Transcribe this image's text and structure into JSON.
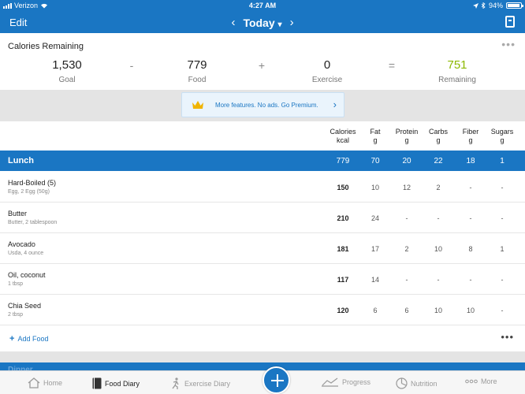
{
  "status": {
    "carrier": "Verizon",
    "time": "4:27 AM",
    "battery": "94%"
  },
  "nav": {
    "edit": "Edit",
    "title": "Today",
    "prev_arrow": "‹",
    "next_arrow": "›",
    "chevron": "⌄"
  },
  "calories": {
    "title": "Calories Remaining",
    "more": "•••",
    "goal": {
      "value": "1,530",
      "label": "Goal"
    },
    "food": {
      "value": "779",
      "label": "Food"
    },
    "exercise": {
      "value": "0",
      "label": "Exercise"
    },
    "remaining": {
      "value": "751",
      "label": "Remaining"
    },
    "op_minus": "-",
    "op_plus": "+",
    "op_equals": "=",
    "remaining_color": "#8cb800"
  },
  "promo": {
    "text": "More features. No ads. Go Premium.",
    "icon": "crown-icon",
    "arrow": "›"
  },
  "columns": [
    {
      "name": "Calories",
      "unit": "kcal"
    },
    {
      "name": "Fat",
      "unit": "g"
    },
    {
      "name": "Protein",
      "unit": "g"
    },
    {
      "name": "Carbs",
      "unit": "g"
    },
    {
      "name": "Fiber",
      "unit": "g"
    },
    {
      "name": "Sugars",
      "unit": "g"
    }
  ],
  "meal": {
    "name": "Lunch",
    "totals": [
      "779",
      "70",
      "20",
      "22",
      "18",
      "1"
    ]
  },
  "foods": [
    {
      "name": "Hard-Boiled (5)",
      "desc": "Egg, 2 Egg (50g)",
      "values": [
        "150",
        "10",
        "12",
        "2",
        "-",
        "-"
      ]
    },
    {
      "name": "Butter",
      "desc": "Butter, 2 tablespoon",
      "values": [
        "210",
        "24",
        "-",
        "-",
        "-",
        "-"
      ]
    },
    {
      "name": "Avocado",
      "desc": "Usda, 4 ounce",
      "values": [
        "181",
        "17",
        "2",
        "10",
        "8",
        "1"
      ]
    },
    {
      "name": "Oil, coconut",
      "desc": "1 tbsp",
      "values": [
        "117",
        "14",
        "-",
        "-",
        "-",
        "-"
      ]
    },
    {
      "name": "Chia Seed",
      "desc": "2 tbsp",
      "values": [
        "120",
        "6",
        "6",
        "10",
        "10",
        "-"
      ]
    }
  ],
  "add_food": {
    "plus": "+",
    "label": "Add Food",
    "more": "•••"
  },
  "next_meal": "Dinner",
  "tabs": [
    {
      "label": "Home",
      "icon": "home-icon"
    },
    {
      "label": "Food Diary",
      "icon": "diary-icon"
    },
    {
      "label": "Exercise Diary",
      "icon": "runner-icon"
    },
    {
      "label": "Progress",
      "icon": "chart-icon"
    },
    {
      "label": "Nutrition",
      "icon": "pie-icon"
    },
    {
      "label": "More",
      "icon": "more-dots-icon"
    }
  ],
  "colors": {
    "brand": "#1a76c3",
    "remaining": "#8cb800"
  }
}
